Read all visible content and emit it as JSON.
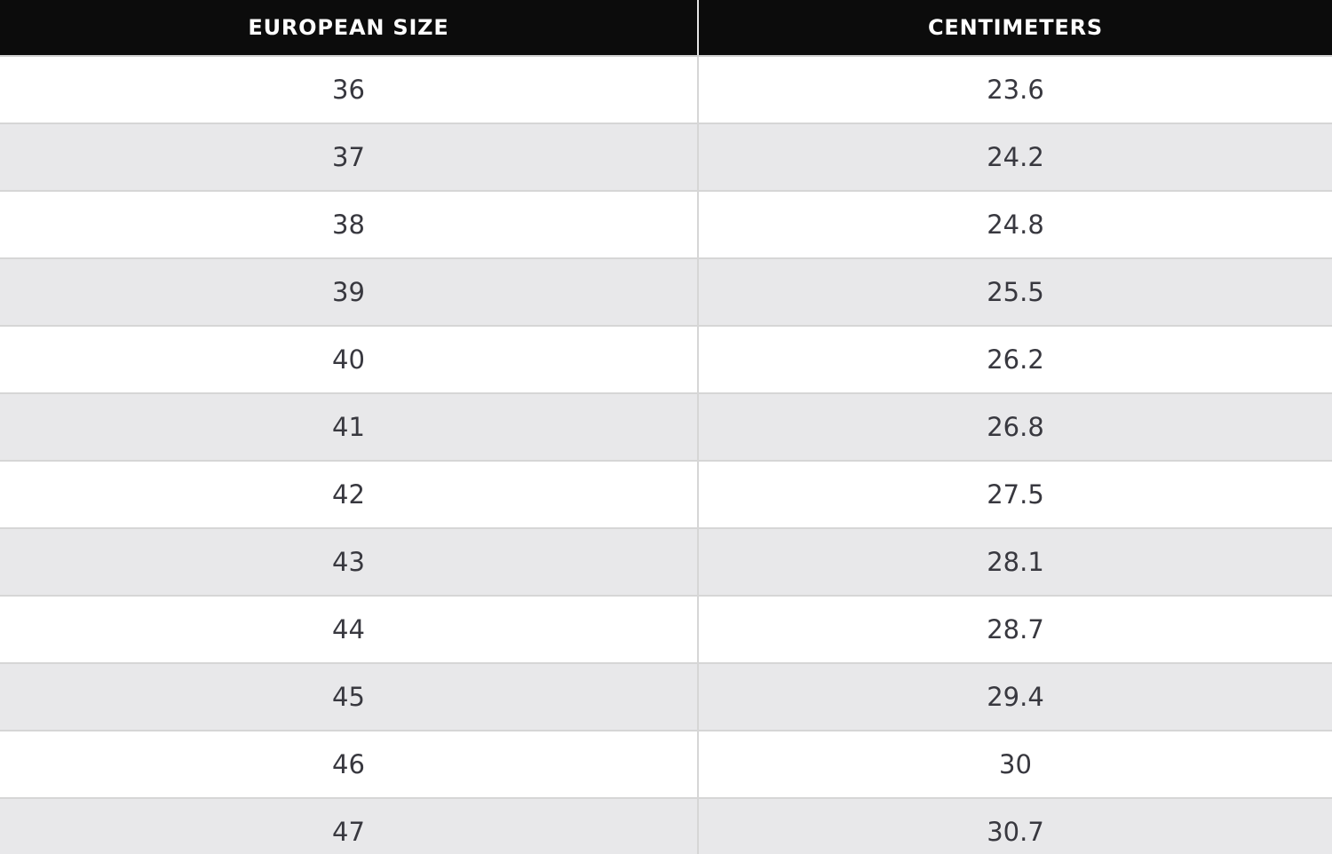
{
  "table": {
    "headers": {
      "eu": "EUROPEAN SIZE",
      "cm": "CENTIMETERS"
    },
    "rows": [
      {
        "eu": "36",
        "cm": "23.6"
      },
      {
        "eu": "37",
        "cm": "24.2"
      },
      {
        "eu": "38",
        "cm": "24.8"
      },
      {
        "eu": "39",
        "cm": "25.5"
      },
      {
        "eu": "40",
        "cm": "26.2"
      },
      {
        "eu": "41",
        "cm": "26.8"
      },
      {
        "eu": "42",
        "cm": "27.5"
      },
      {
        "eu": "43",
        "cm": "28.1"
      },
      {
        "eu": "44",
        "cm": "28.7"
      },
      {
        "eu": "45",
        "cm": "29.4"
      },
      {
        "eu": "46",
        "cm": "30"
      },
      {
        "eu": "47",
        "cm": "30.7"
      }
    ],
    "colors": {
      "header_bg": "#0c0c0c",
      "header_text": "#ffffff",
      "row_alt_bg": "#e8e8ea",
      "row_text": "#38383f",
      "border": "#d6d6d6"
    }
  },
  "chart_data": {
    "type": "table",
    "title": "",
    "columns": [
      "EUROPEAN SIZE",
      "CENTIMETERS"
    ],
    "rows": [
      [
        36,
        23.6
      ],
      [
        37,
        24.2
      ],
      [
        38,
        24.8
      ],
      [
        39,
        25.5
      ],
      [
        40,
        26.2
      ],
      [
        41,
        26.8
      ],
      [
        42,
        27.5
      ],
      [
        43,
        28.1
      ],
      [
        44,
        28.7
      ],
      [
        45,
        29.4
      ],
      [
        46,
        30
      ],
      [
        47,
        30.7
      ]
    ],
    "layout": {
      "alternating_row_shading": true,
      "header_style": "black-bar",
      "last_row_clipped": true
    }
  }
}
